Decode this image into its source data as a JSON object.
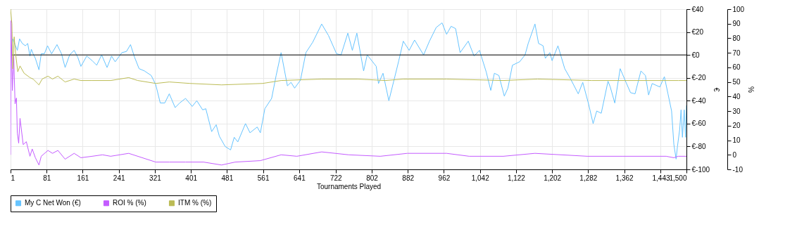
{
  "chart_data": {
    "type": "line",
    "xlabel": "Tournaments Played",
    "ylabel": "€",
    "y2label": "%",
    "xlim": [
      1,
      1500
    ],
    "xticks": [
      1,
      81,
      161,
      241,
      321,
      401,
      481,
      561,
      641,
      722,
      802,
      882,
      962,
      {
        "value": 1042,
        "label": "1,042"
      },
      {
        "value": 1122,
        "label": "1,122"
      },
      {
        "value": 1202,
        "label": "1,202"
      },
      {
        "value": 1282,
        "label": "1,282"
      },
      {
        "value": 1362,
        "label": "1,362"
      },
      {
        "value": 1443,
        "label": "1,443"
      },
      {
        "value": 1500,
        "label": "1,500"
      }
    ],
    "ylim": [
      -100,
      40
    ],
    "yticks": [
      {
        "value": 40,
        "label": "€40"
      },
      {
        "value": 20,
        "label": "€20"
      },
      {
        "value": 0,
        "label": "€0"
      },
      {
        "value": -20,
        "label": "€-20"
      },
      {
        "value": -40,
        "label": "€-40"
      },
      {
        "value": -60,
        "label": "€-60"
      },
      {
        "value": -80,
        "label": "€-80"
      },
      {
        "value": -100,
        "label": "€-100"
      }
    ],
    "y2lim": [
      -10,
      100
    ],
    "y2ticks": [
      100,
      90,
      80,
      70,
      60,
      50,
      40,
      30,
      20,
      10,
      0,
      -10
    ],
    "grid": true,
    "legend": "bottom left",
    "ref_lines": [
      {
        "axis": "y",
        "value": 0,
        "color": "#000000"
      }
    ],
    "series": [
      {
        "name": "My C Net Won (€)",
        "color": "#66c4ff",
        "axis": "y",
        "x": [
          2,
          6,
          11,
          16,
          21,
          27,
          34,
          39,
          44,
          47,
          51,
          56,
          64,
          69,
          76,
          83,
          92,
          104,
          114,
          122,
          132,
          142,
          150,
          157,
          170,
          182,
          192,
          203,
          215,
          225,
          233,
          248,
          258,
          267,
          276,
          286,
          298,
          313,
          323,
          333,
          343,
          353,
          366,
          376,
          389,
          404,
          414,
          427,
          434,
          447,
          457,
          464,
          477,
          489,
          497,
          505,
          522,
          532,
          548,
          555,
          565,
          580,
          590,
          601,
          615,
          623,
          631,
          644,
          656,
          671,
          691,
          706,
          724,
          734,
          749,
          759,
          769,
          784,
          792,
          812,
          817,
          827,
          840,
          852,
          862,
          872,
          885,
          897,
          917,
          930,
          945,
          958,
          968,
          978,
          988,
          998,
          1016,
          1029,
          1041,
          1056,
          1066,
          1074,
          1084,
          1096,
          1104,
          1114,
          1130,
          1142,
          1149,
          1164,
          1172,
          1182,
          1187,
          1197,
          1202,
          1215,
          1230,
          1243,
          1260,
          1270,
          1283,
          1293,
          1301,
          1311,
          1326,
          1331,
          1341,
          1353,
          1366,
          1376,
          1386,
          1399,
          1409,
          1416,
          1424,
          1441,
          1451,
          1459,
          1467,
          1472,
          1477,
          1480,
          1485,
          1488,
          1491,
          1495,
          1498,
          1500
        ],
        "values": [
          0,
          14,
          9,
          4,
          14,
          10,
          8,
          10,
          -1,
          5,
          1,
          -3,
          -13,
          1,
          1,
          8,
          1,
          9,
          1,
          -11,
          0,
          4,
          -2,
          -10,
          -1,
          -5,
          -9,
          0,
          -11,
          -1,
          -6,
          2,
          3,
          9,
          -2,
          -12,
          -14,
          -18,
          -26,
          -42,
          -42,
          -34,
          -46,
          -42,
          -38,
          -45,
          -40,
          -48,
          -47,
          -67,
          -61,
          -71,
          -80,
          -83,
          -72,
          -76,
          -60,
          -68,
          -63,
          -68,
          -47,
          -38,
          -18,
          2,
          -27,
          -24,
          -29,
          -22,
          2,
          11,
          27,
          17,
          1,
          0,
          19,
          4,
          19,
          -14,
          0,
          -10,
          -25,
          -16,
          -40,
          -21,
          -5,
          12,
          4,
          13,
          0,
          12,
          24,
          28,
          18,
          25,
          23,
          2,
          12,
          -1,
          4,
          -15,
          -31,
          -16,
          -18,
          -36,
          -29,
          -9,
          -6,
          0,
          10,
          27,
          10,
          8,
          -3,
          2,
          -5,
          8,
          -12,
          -21,
          -34,
          -24,
          -43,
          -60,
          -49,
          -51,
          -23,
          -28,
          -42,
          -12,
          -24,
          -33,
          -34,
          -14,
          -18,
          -35,
          -25,
          -28,
          -19,
          -34,
          -49,
          -78,
          -91,
          -80,
          -65,
          -48,
          -72,
          -48,
          -72,
          -44
        ]
      },
      {
        "name": "ROI % (%)",
        "color": "#c45cff",
        "axis": "y2",
        "x": [
          1,
          2,
          5,
          8,
          11,
          14,
          16,
          19,
          22,
          29,
          36,
          44,
          49,
          56,
          64,
          69,
          84,
          94,
          106,
          122,
          142,
          157,
          182,
          205,
          223,
          263,
          293,
          323,
          353,
          389,
          429,
          469,
          499,
          555,
          601,
          636,
          691,
          751,
          821,
          881,
          968,
          1018,
          1094,
          1164,
          1280,
          1358,
          1455,
          1472,
          1482,
          1500
        ],
        "values": [
          0,
          92,
          44,
          68,
          35,
          39,
          15,
          8,
          25,
          7,
          9,
          -1,
          4,
          -2,
          -7,
          -1,
          3,
          1,
          3,
          -3,
          1,
          -2,
          -1,
          0,
          -1,
          1,
          -2,
          -5,
          -5,
          -5,
          -5,
          -7,
          -5,
          -4,
          0,
          -1,
          2,
          0,
          -1,
          1,
          1,
          -1,
          -1,
          1,
          -1,
          -1,
          -1,
          -2,
          -1,
          -1
        ]
      },
      {
        "name": "ITM % (%)",
        "color": "#bcbc55",
        "axis": "y2",
        "x": [
          1,
          4,
          6,
          9,
          12,
          17,
          22,
          31,
          44,
          51,
          64,
          71,
          84,
          94,
          106,
          122,
          142,
          157,
          182,
          223,
          263,
          283,
          323,
          353,
          399,
          469,
          560,
          601,
          691,
          771,
          832,
          872,
          968,
          1094,
          1170,
          1290,
          1482,
          1500
        ],
        "values": [
          100,
          90,
          59,
          81,
          70,
          57,
          61,
          56,
          53,
          52,
          48,
          52,
          54,
          52,
          54,
          50,
          52,
          51,
          51,
          51,
          53,
          51,
          49,
          50,
          49,
          48,
          49,
          51,
          52,
          52,
          51,
          52,
          52,
          51,
          52,
          51,
          51,
          51
        ]
      }
    ]
  }
}
